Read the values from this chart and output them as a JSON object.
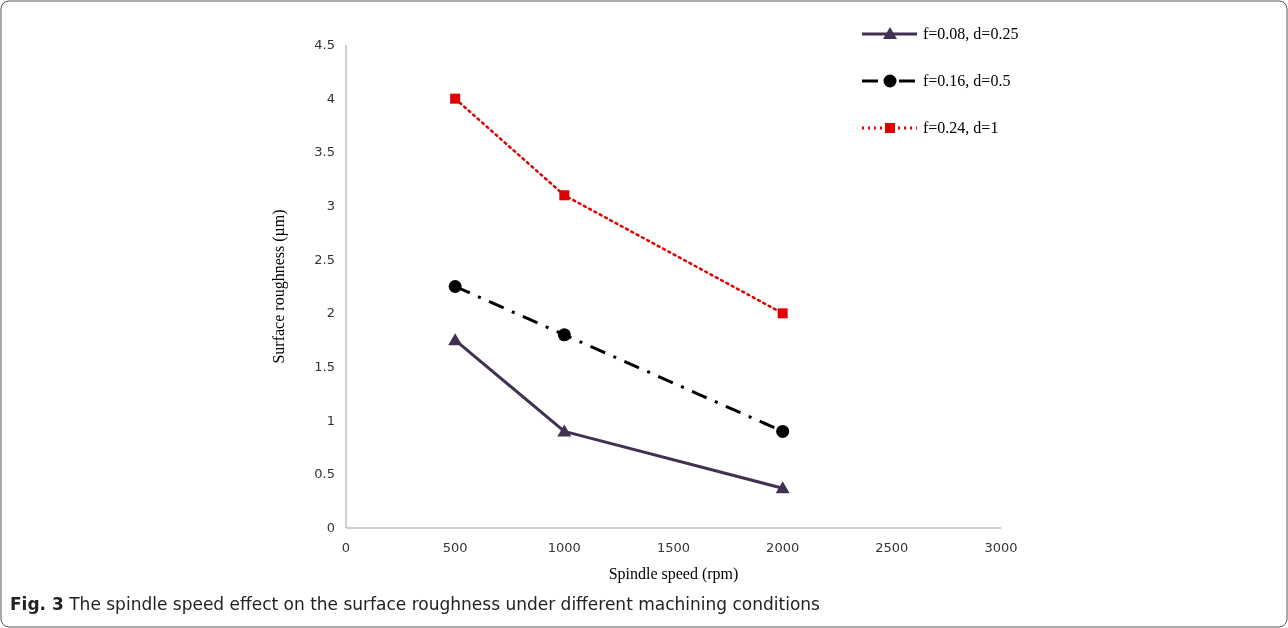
{
  "chart_data": {
    "type": "line",
    "xlabel": "Spindle speed (rpm)",
    "ylabel": "Surface roughness (µm)",
    "annotations": [
      "Fig. 3 The spindle speed effect on the surface roughness under different machining conditions"
    ],
    "x": [
      500,
      1000,
      2000
    ],
    "series": [
      {
        "name": "f=0.08, d=0.25",
        "color": "#403152",
        "marker": "triangle",
        "line_style": "solid",
        "values": [
          1.75,
          0.9,
          0.37
        ]
      },
      {
        "name": "f=0.16, d=0.5",
        "color": "#000000",
        "marker": "circle",
        "line_style": "dashed",
        "values": [
          2.25,
          1.8,
          0.9
        ]
      },
      {
        "name": "f=0.24, d=1",
        "color": "#e00000",
        "marker": "square",
        "line_style": "dotted",
        "values": [
          4,
          3.1,
          2
        ]
      }
    ],
    "xlim": [
      0,
      3000
    ],
    "xticks": [
      0,
      500,
      1000,
      1500,
      2000,
      2500,
      3000
    ],
    "ylim": [
      0,
      4.5
    ],
    "yticks": [
      0,
      0.5,
      1,
      1.5,
      2,
      2.5,
      3,
      3.5,
      4,
      4.5
    ],
    "grid": false,
    "legend": "top right"
  }
}
